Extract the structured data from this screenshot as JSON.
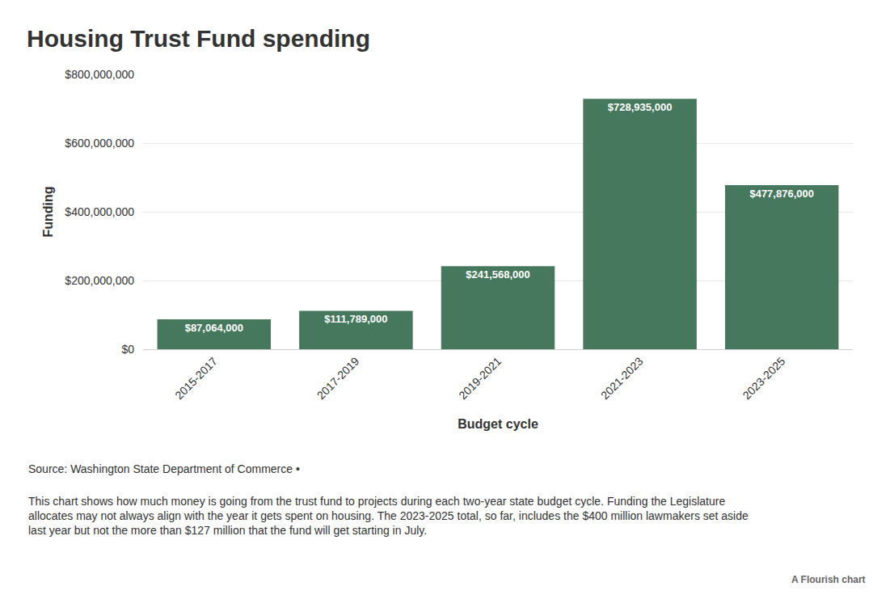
{
  "chart_data": {
    "type": "bar",
    "title": "Housing Trust Fund spending",
    "x_label": "Budget cycle",
    "y_label": "Funding",
    "categories": [
      "2015-2017",
      "2017-2019",
      "2019-2021",
      "2021-2023",
      "2023-2025"
    ],
    "values": [
      87064000,
      111789000,
      241568000,
      728935000,
      477876000
    ],
    "value_labels": [
      "$87,064,000",
      "$111,789,000",
      "$241,568,000",
      "$728,935,000",
      "$477,876,000"
    ],
    "color": "#45785c",
    "ylim": [
      0,
      800000000
    ],
    "yticks": [
      {
        "value": 0,
        "label": "$0"
      },
      {
        "value": 200000000,
        "label": "$200,000,000"
      },
      {
        "value": 400000000,
        "label": "$400,000,000"
      },
      {
        "value": 600000000,
        "label": "$600,000,000"
      },
      {
        "value": 800000000,
        "label": "$800,000,000"
      }
    ],
    "grid": true,
    "data_labels": true,
    "annotations": [
      "Source: Washington State Department of Commerce •",
      "This chart shows how much money is going from the trust fund to projects during each two-year state budget cycle. Funding the Legislature allocates may not always align with the year it gets spent on housing. The 2023-2025 total, so far, includes the $400 million lawmakers set aside last year but not the more than $127 million that the fund will get starting in July.",
      "A Flourish chart"
    ]
  }
}
